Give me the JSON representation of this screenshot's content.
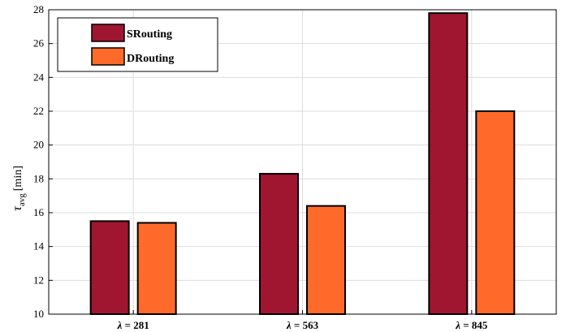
{
  "chart_data": {
    "type": "bar",
    "categories": [
      "λ = 281",
      "λ = 563",
      "λ = 845"
    ],
    "series": [
      {
        "name": "SRouting",
        "values": [
          15.5,
          18.3,
          27.8
        ],
        "color": "#a01530"
      },
      {
        "name": "DRouting",
        "values": [
          15.4,
          16.4,
          22.0
        ],
        "color": "#ff6a2b"
      }
    ],
    "ylabel": {
      "symbol": "τ",
      "subscript": "avg",
      "unit": "[min]"
    },
    "ylim": [
      10,
      28
    ],
    "yticks": [
      10,
      12,
      14,
      16,
      18,
      20,
      22,
      24,
      26,
      28
    ],
    "grid": true,
    "legend_position": "top-left"
  }
}
